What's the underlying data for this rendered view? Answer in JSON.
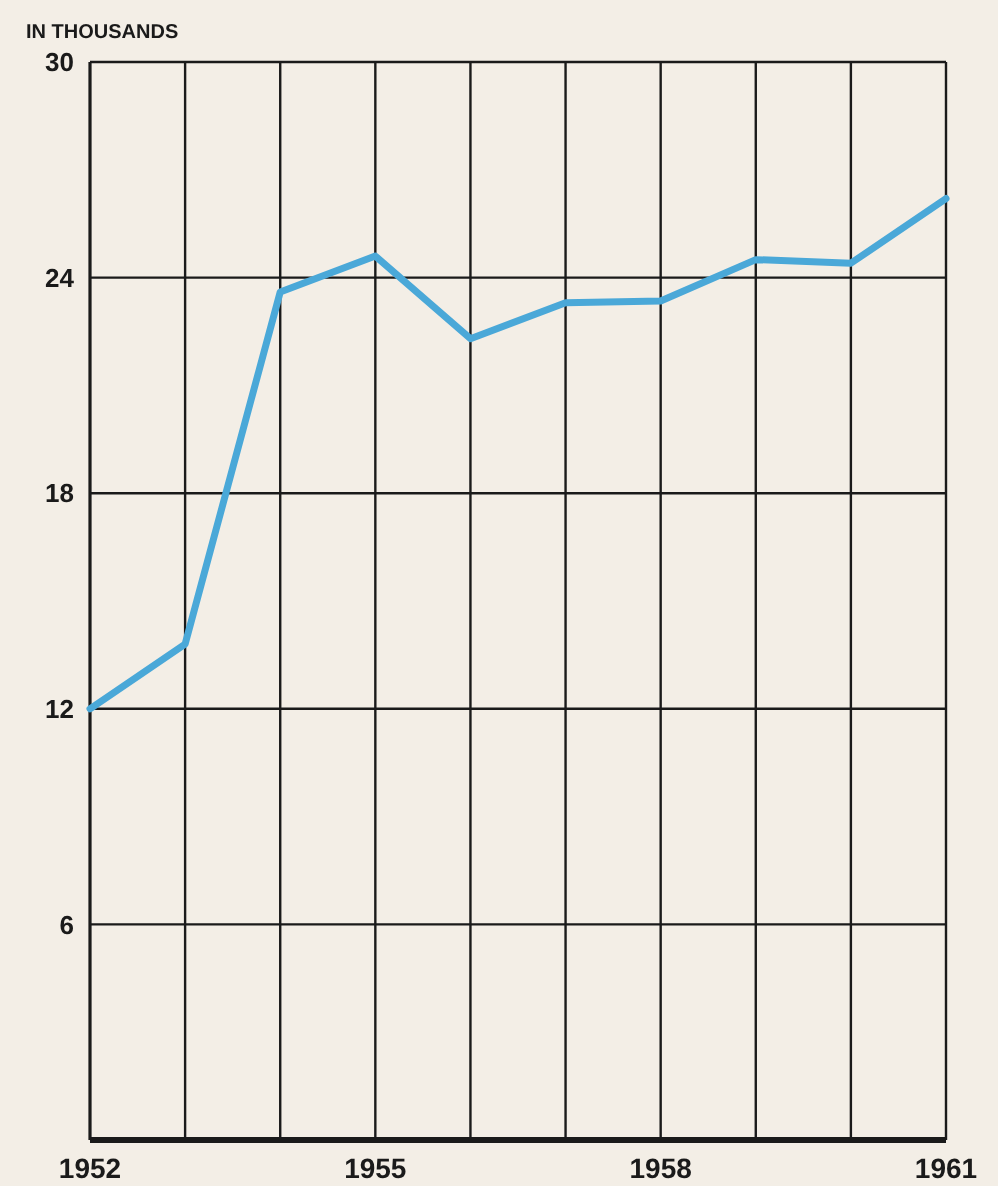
{
  "chart_data": {
    "type": "line",
    "ylabel": "IN THOUSANDS",
    "x": [
      1952,
      1953,
      1954,
      1955,
      1956,
      1957,
      1958,
      1959,
      1960,
      1961
    ],
    "series": [
      {
        "color": "#4aa8d8",
        "values": [
          12.0,
          13.8,
          23.6,
          24.6,
          22.3,
          23.3,
          23.35,
          24.5,
          24.4,
          26.2
        ]
      }
    ],
    "xlim": [
      1952,
      1961
    ],
    "xticks": [
      1952,
      {
        "value": 1953,
        "label": null
      },
      {
        "value": 1954,
        "label": null
      },
      1955,
      {
        "value": 1956,
        "label": null
      },
      {
        "value": 1957,
        "label": null
      },
      1958,
      {
        "value": 1959,
        "label": null
      },
      {
        "value": 1960,
        "label": null
      },
      1961
    ],
    "ylim": [
      0,
      30
    ],
    "yticks": [
      {
        "value": 0,
        "label": null
      },
      6,
      12,
      18,
      24,
      30
    ],
    "grid": true,
    "marker": "none",
    "line_style": "solid"
  }
}
